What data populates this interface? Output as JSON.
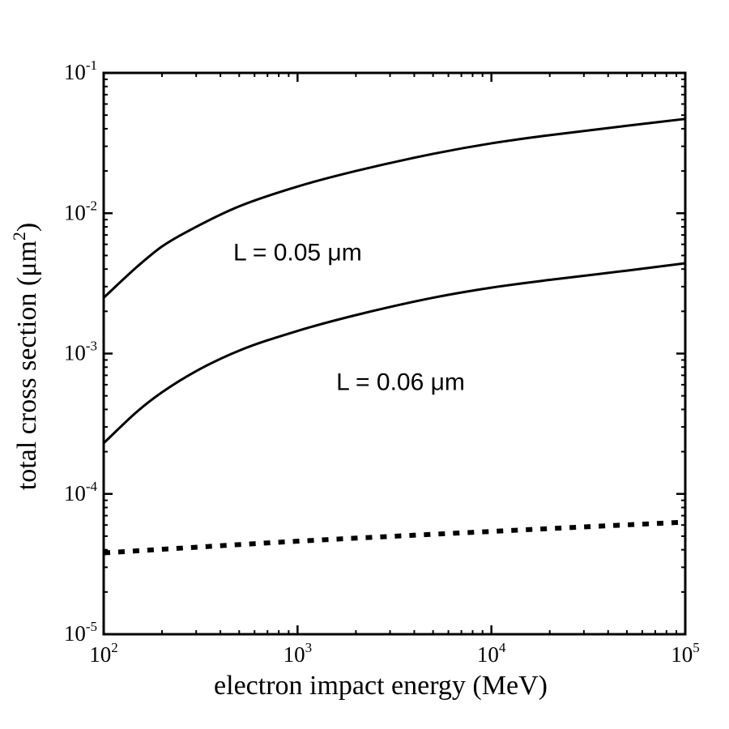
{
  "chart_data": {
    "type": "line",
    "x_scale": "log",
    "y_scale": "log",
    "xlabel": "electron impact energy (MeV)",
    "ylabel_main": "total cross section (μm",
    "ylabel_sup": "2",
    "ylabel_end": ")",
    "xlim": [
      100,
      100000
    ],
    "ylim": [
      1e-05,
      0.1
    ],
    "x_ticks": [
      {
        "value": 100,
        "base": "10",
        "exp": "2"
      },
      {
        "value": 1000,
        "base": "10",
        "exp": "3"
      },
      {
        "value": 10000,
        "base": "10",
        "exp": "4"
      },
      {
        "value": 100000,
        "base": "10",
        "exp": "5"
      }
    ],
    "y_ticks": [
      {
        "value": 1e-05,
        "base": "10",
        "exp": "-5"
      },
      {
        "value": 0.0001,
        "base": "10",
        "exp": "-4"
      },
      {
        "value": 0.001,
        "base": "10",
        "exp": "-3"
      },
      {
        "value": 0.01,
        "base": "10",
        "exp": "-2"
      },
      {
        "value": 0.1,
        "base": "10",
        "exp": "-1"
      }
    ],
    "series": [
      {
        "name": "L = 0.05 μm",
        "style": "solid",
        "x": [
          100,
          150,
          200,
          300,
          500,
          1000,
          2000,
          5000,
          10000,
          20000,
          50000,
          100000
        ],
        "y": [
          0.0025,
          0.0042,
          0.0058,
          0.008,
          0.0112,
          0.0155,
          0.02,
          0.0265,
          0.0315,
          0.036,
          0.042,
          0.047
        ]
      },
      {
        "name": "L = 0.06 μm",
        "style": "solid",
        "x": [
          100,
          150,
          200,
          300,
          500,
          1000,
          2000,
          5000,
          10000,
          20000,
          50000,
          100000
        ],
        "y": [
          0.00023,
          0.00039,
          0.00053,
          0.00075,
          0.00105,
          0.00145,
          0.00188,
          0.0025,
          0.00295,
          0.00335,
          0.0039,
          0.0044
        ]
      },
      {
        "name": "",
        "style": "dotted",
        "x": [
          100,
          1000,
          10000,
          100000
        ],
        "y": [
          3.8e-05,
          4.6e-05,
          5.4e-05,
          6.3e-05
        ]
      }
    ],
    "annotations": [
      {
        "text": "L = 0.05 μm",
        "x": 1000,
        "y": 0.0046
      },
      {
        "text": "L = 0.06 μm",
        "x": 3400,
        "y": 0.00055
      }
    ]
  }
}
